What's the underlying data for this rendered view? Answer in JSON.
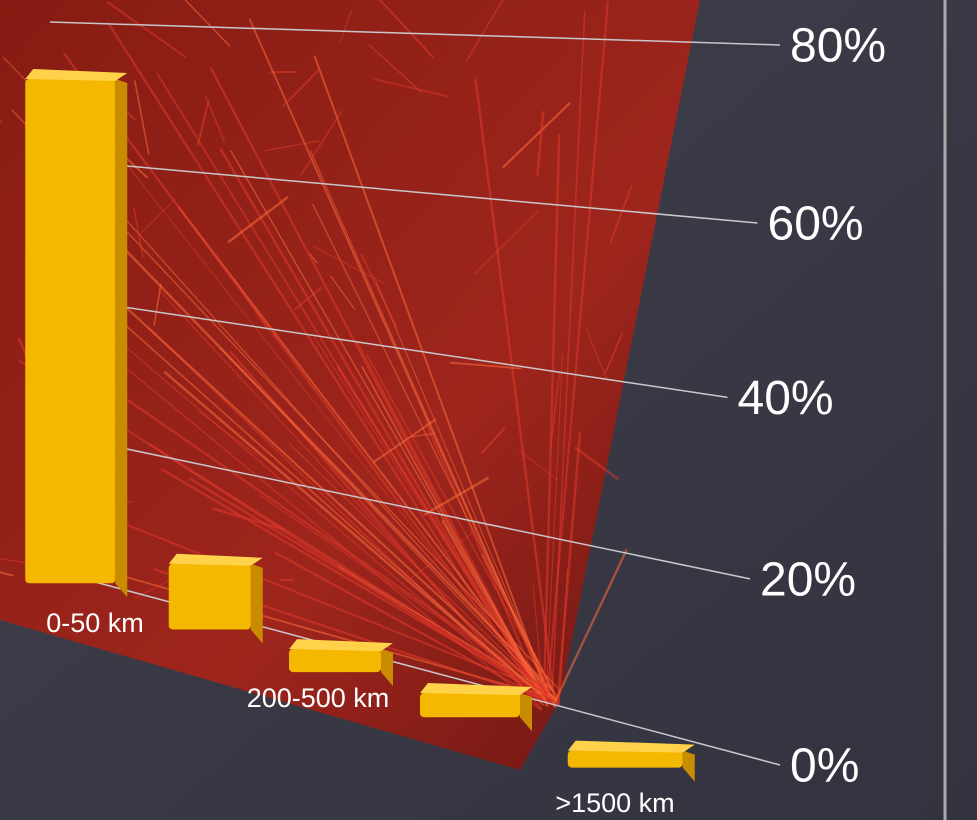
{
  "chart_data": {
    "type": "bar",
    "categories": [
      "0-50 km",
      null,
      "200-500 km",
      null,
      ">1500 km"
    ],
    "values": [
      73,
      9,
      3,
      3,
      2
    ],
    "color": "#f5b800",
    "ylim": [
      0,
      80
    ],
    "yticks": [
      {
        "value": 0,
        "label": "0%"
      },
      {
        "value": 20,
        "label": "20%"
      },
      {
        "value": 40,
        "label": "40%"
      },
      {
        "value": 60,
        "label": "60%"
      },
      {
        "value": 80,
        "label": "80%"
      }
    ],
    "grid": true
  }
}
